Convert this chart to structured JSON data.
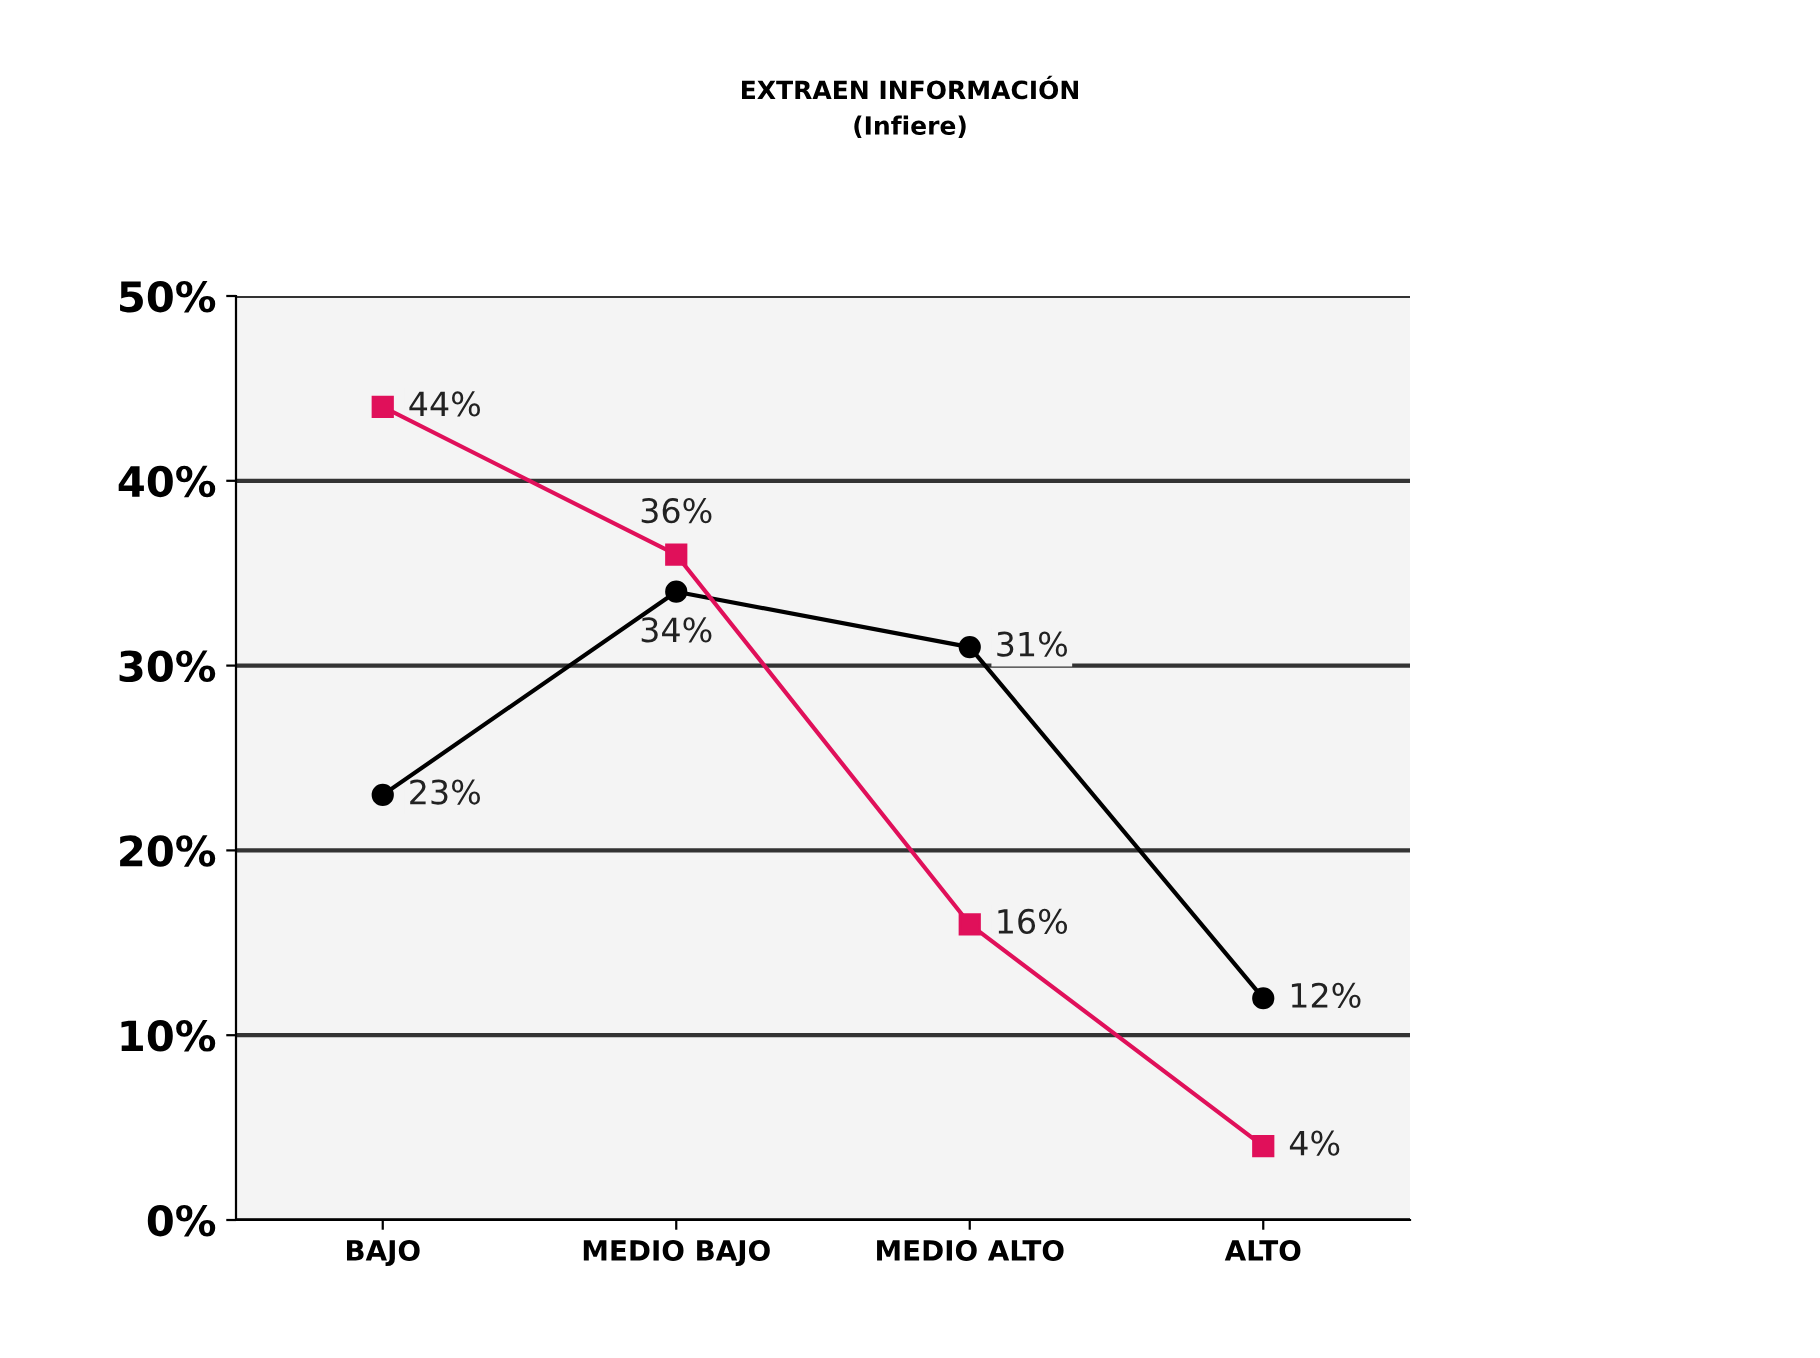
{
  "chart_data": {
    "type": "line",
    "title": "EXTRAEN INFORMACIÓN\n(Infiere)",
    "categories": [
      "BAJO",
      "MEDIO BAJO",
      "MEDIO ALTO",
      "ALTO"
    ],
    "series": [
      {
        "color": "#000000",
        "marker": "circle",
        "values": [
          23,
          34,
          31,
          12
        ],
        "value_labels": [
          "23%",
          "34%",
          "31%",
          "12%"
        ]
      },
      {
        "color": "#e0105a",
        "marker": "square",
        "values": [
          44,
          36,
          16,
          4
        ],
        "value_labels": [
          "44%",
          "36%",
          "16%",
          "4%"
        ]
      }
    ],
    "ylim": [
      0,
      50
    ],
    "yticks": [
      {
        "value": 0,
        "label": "0%"
      },
      {
        "value": 10,
        "label": "10%"
      },
      {
        "value": 20,
        "label": "20%"
      },
      {
        "value": 30,
        "label": "30%"
      },
      {
        "value": 40,
        "label": "40%"
      },
      {
        "value": 50,
        "label": "50%"
      }
    ],
    "grid": "y",
    "line_style": "solid"
  }
}
